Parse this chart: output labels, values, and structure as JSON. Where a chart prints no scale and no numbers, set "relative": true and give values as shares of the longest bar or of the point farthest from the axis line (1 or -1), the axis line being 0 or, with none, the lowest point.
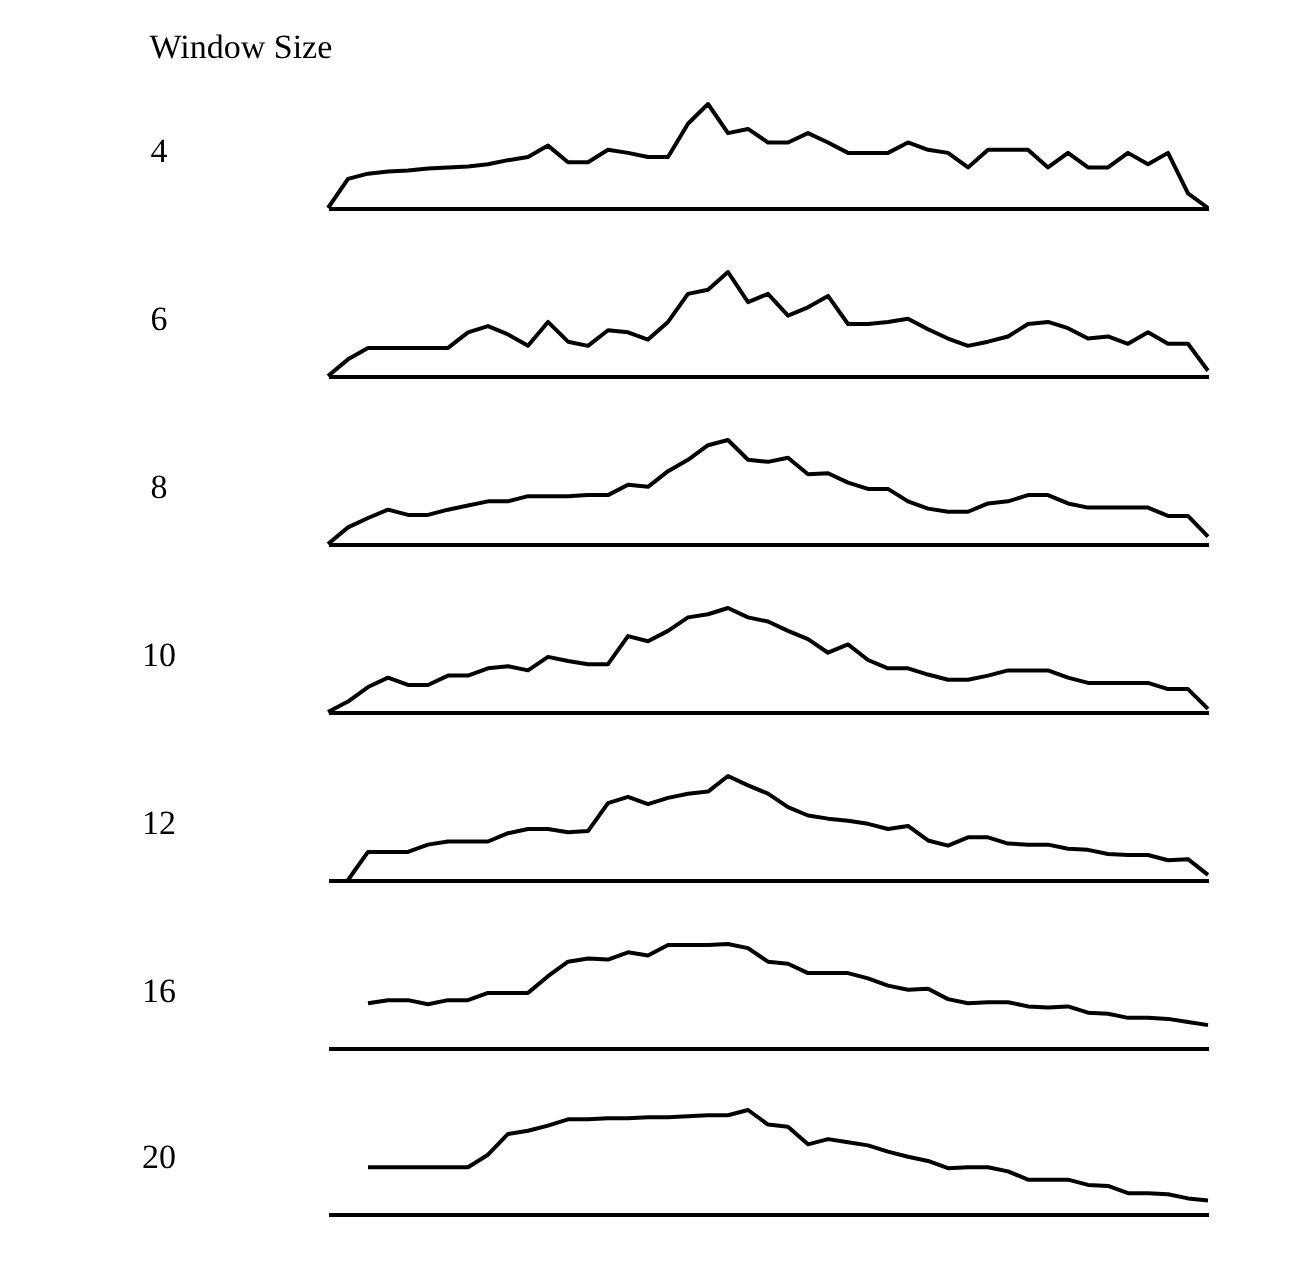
{
  "chart_data": [
    {
      "type": "line",
      "title": "Window Size",
      "ylabel": "4",
      "relative": true,
      "color": "#000000",
      "categories": [
        null,
        null,
        null,
        null,
        null,
        null,
        null,
        null,
        null,
        null,
        null,
        null,
        null,
        null,
        null,
        null,
        null,
        null,
        null,
        null,
        null,
        null,
        null,
        null,
        null,
        null,
        null,
        null,
        null,
        null,
        null,
        null,
        null,
        null,
        null,
        null,
        null,
        null,
        null,
        null,
        null,
        null,
        null,
        null,
        null
      ],
      "values": [
        0,
        0.28,
        0.33,
        0.35,
        0.36,
        0.38,
        0.39,
        0.4,
        0.42,
        0.46,
        0.49,
        0.6,
        0.44,
        0.44,
        0.56,
        0.53,
        0.49,
        0.49,
        0.81,
        1,
        0.72,
        0.76,
        0.63,
        0.63,
        0.72,
        0.63,
        0.53,
        0.53,
        0.53,
        0.63,
        0.56,
        0.53,
        0.39,
        0.56,
        0.56,
        0.56,
        0.39,
        0.53,
        0.39,
        0.39,
        0.53,
        0.42,
        0.53,
        0.14,
        0
      ]
    },
    {
      "type": "line",
      "ylabel": "6",
      "relative": true,
      "color": "#000000",
      "categories": [
        null,
        null,
        null,
        null,
        null,
        null,
        null,
        null,
        null,
        null,
        null,
        null,
        null,
        null,
        null,
        null,
        null,
        null,
        null,
        null,
        null,
        null,
        null,
        null,
        null,
        null,
        null,
        null,
        null,
        null,
        null,
        null,
        null,
        null,
        null,
        null,
        null,
        null,
        null,
        null,
        null,
        null,
        null,
        null,
        null
      ],
      "values": [
        0,
        0.16,
        0.27,
        0.27,
        0.27,
        0.27,
        0.27,
        0.42,
        0.48,
        0.4,
        0.29,
        0.52,
        0.33,
        0.29,
        0.44,
        0.42,
        0.35,
        0.52,
        0.79,
        0.83,
        1,
        0.71,
        0.79,
        0.58,
        0.66,
        0.77,
        0.5,
        0.5,
        0.52,
        0.55,
        0.45,
        0.36,
        0.29,
        0.33,
        0.38,
        0.5,
        0.52,
        0.46,
        0.36,
        0.38,
        0.31,
        0.42,
        0.31,
        0.31,
        0.05
      ]
    },
    {
      "type": "line",
      "ylabel": "8",
      "relative": true,
      "color": "#000000",
      "categories": [
        null,
        null,
        null,
        null,
        null,
        null,
        null,
        null,
        null,
        null,
        null,
        null,
        null,
        null,
        null,
        null,
        null,
        null,
        null,
        null,
        null,
        null,
        null,
        null,
        null,
        null,
        null,
        null,
        null,
        null,
        null,
        null,
        null,
        null,
        null,
        null,
        null,
        null,
        null,
        null,
        null,
        null,
        null,
        null,
        null
      ],
      "values": [
        0,
        0.16,
        0.25,
        0.33,
        0.28,
        0.28,
        0.33,
        0.37,
        0.41,
        0.41,
        0.46,
        0.46,
        0.46,
        0.47,
        0.47,
        0.57,
        0.55,
        0.7,
        0.81,
        0.95,
        1,
        0.81,
        0.79,
        0.83,
        0.67,
        0.68,
        0.59,
        0.53,
        0.53,
        0.41,
        0.34,
        0.31,
        0.31,
        0.39,
        0.41,
        0.47,
        0.47,
        0.39,
        0.35,
        0.35,
        0.35,
        0.35,
        0.27,
        0.27,
        0.07
      ]
    },
    {
      "type": "line",
      "ylabel": "10",
      "relative": true,
      "color": "#000000",
      "categories": [
        null,
        null,
        null,
        null,
        null,
        null,
        null,
        null,
        null,
        null,
        null,
        null,
        null,
        null,
        null,
        null,
        null,
        null,
        null,
        null,
        null,
        null,
        null,
        null,
        null,
        null,
        null,
        null,
        null,
        null,
        null,
        null,
        null,
        null,
        null,
        null,
        null,
        null,
        null,
        null,
        null,
        null,
        null,
        null,
        null
      ],
      "values": [
        0,
        0.1,
        0.24,
        0.33,
        0.26,
        0.26,
        0.35,
        0.35,
        0.42,
        0.44,
        0.4,
        0.53,
        0.49,
        0.46,
        0.46,
        0.73,
        0.68,
        0.78,
        0.91,
        0.94,
        1,
        0.91,
        0.87,
        0.78,
        0.7,
        0.57,
        0.65,
        0.5,
        0.42,
        0.42,
        0.36,
        0.31,
        0.31,
        0.35,
        0.4,
        0.4,
        0.4,
        0.33,
        0.28,
        0.28,
        0.28,
        0.28,
        0.22,
        0.22,
        0.03
      ]
    },
    {
      "type": "line",
      "ylabel": "12",
      "relative": true,
      "color": "#000000",
      "categories": [
        null,
        null,
        null,
        null,
        null,
        null,
        null,
        null,
        null,
        null,
        null,
        null,
        null,
        null,
        null,
        null,
        null,
        null,
        null,
        null,
        null,
        null,
        null,
        null,
        null,
        null,
        null,
        null,
        null,
        null,
        null,
        null,
        null,
        null,
        null,
        null,
        null,
        null,
        null,
        null,
        null,
        null,
        null,
        null,
        null
      ],
      "values": [
        null,
        0,
        0.27,
        0.27,
        0.27,
        0.34,
        0.37,
        0.37,
        0.37,
        0.45,
        0.49,
        0.49,
        0.46,
        0.47,
        0.74,
        0.8,
        0.73,
        0.79,
        0.83,
        0.85,
        1,
        0.91,
        0.83,
        0.7,
        0.62,
        0.59,
        0.57,
        0.54,
        0.49,
        0.52,
        0.38,
        0.33,
        0.41,
        0.41,
        0.35,
        0.34,
        0.34,
        0.3,
        0.29,
        0.25,
        0.24,
        0.24,
        0.19,
        0.2,
        0.05
      ]
    },
    {
      "type": "line",
      "ylabel": "16",
      "relative": true,
      "color": "#000000",
      "categories": [
        null,
        null,
        null,
        null,
        null,
        null,
        null,
        null,
        null,
        null,
        null,
        null,
        null,
        null,
        null,
        null,
        null,
        null,
        null,
        null,
        null,
        null,
        null,
        null,
        null,
        null,
        null,
        null,
        null,
        null,
        null,
        null,
        null,
        null,
        null,
        null,
        null,
        null,
        null,
        null,
        null,
        null,
        null,
        null,
        null
      ],
      "values": [
        null,
        null,
        0.43,
        0.46,
        0.46,
        0.42,
        0.46,
        0.46,
        0.53,
        0.53,
        0.53,
        0.69,
        0.83,
        0.86,
        0.85,
        0.92,
        0.89,
        0.99,
        0.99,
        0.99,
        1,
        0.96,
        0.83,
        0.81,
        0.72,
        0.72,
        0.72,
        0.67,
        0.6,
        0.56,
        0.57,
        0.47,
        0.43,
        0.44,
        0.44,
        0.4,
        0.39,
        0.4,
        0.34,
        0.33,
        0.29,
        0.29,
        0.28,
        0.25,
        0.22
      ]
    },
    {
      "type": "line",
      "ylabel": "20",
      "relative": true,
      "color": "#000000",
      "categories": [
        null,
        null,
        null,
        null,
        null,
        null,
        null,
        null,
        null,
        null,
        null,
        null,
        null,
        null,
        null,
        null,
        null,
        null,
        null,
        null,
        null,
        null,
        null,
        null,
        null,
        null,
        null,
        null,
        null,
        null,
        null,
        null,
        null,
        null,
        null,
        null,
        null,
        null,
        null,
        null,
        null,
        null,
        null,
        null,
        null
      ],
      "values": [
        null,
        null,
        0.45,
        0.45,
        0.45,
        0.45,
        0.45,
        0.45,
        0.57,
        0.77,
        0.8,
        0.85,
        0.91,
        0.91,
        0.92,
        0.92,
        0.93,
        0.93,
        0.94,
        0.95,
        0.95,
        1,
        0.86,
        0.84,
        0.67,
        0.72,
        0.69,
        0.66,
        0.6,
        0.55,
        0.51,
        0.44,
        0.45,
        0.45,
        0.41,
        0.33,
        0.33,
        0.33,
        0.28,
        0.27,
        0.2,
        0.2,
        0.19,
        0.15,
        0.13
      ]
    }
  ]
}
